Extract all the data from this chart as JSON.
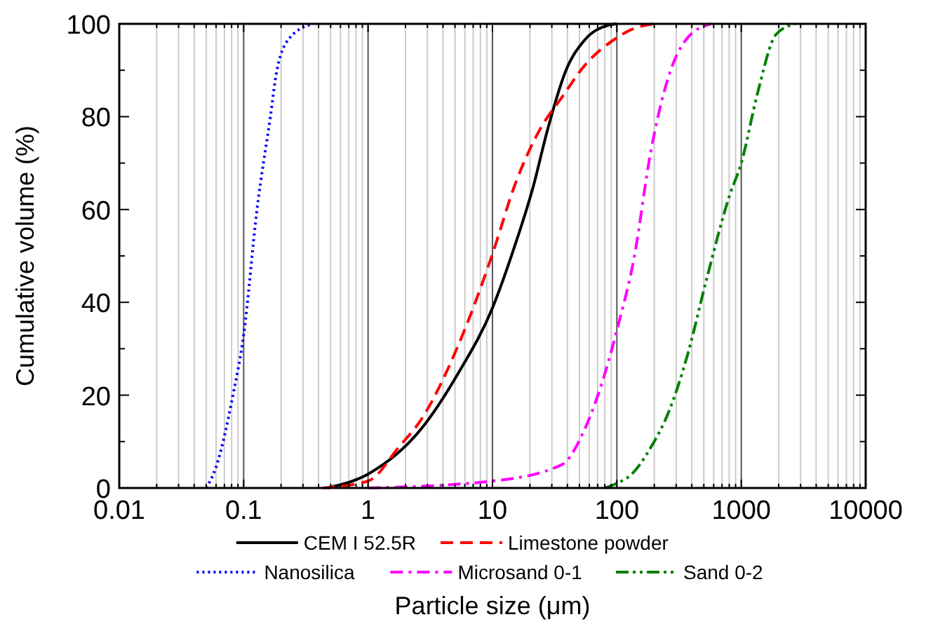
{
  "chart_data": {
    "type": "line",
    "xlabel": "Particle size (μm)",
    "ylabel": "Cumulative volume (%)",
    "log": "x",
    "grid": "x",
    "legend": "bottom",
    "xlim": [
      0.01,
      10000
    ],
    "xticks": [
      0.01,
      0.1,
      1,
      10,
      100,
      1000,
      10000
    ],
    "ylim": [
      0,
      100
    ],
    "yticks": [
      0,
      {
        "value": 10,
        "label": null
      },
      20,
      {
        "value": 30,
        "label": null
      },
      40,
      {
        "value": 50,
        "label": null
      },
      60,
      {
        "value": 70,
        "label": null
      },
      80,
      {
        "value": 90,
        "label": null
      },
      100
    ],
    "series": [
      {
        "name": "CEM I 52.5R",
        "color": "#000000",
        "line_style": "solid",
        "x": [
          0.47,
          1,
          2.65,
          5.3,
          10,
          15,
          21.3,
          27.6,
          39,
          55,
          85,
          100
        ],
        "values": [
          0,
          3,
          12.6,
          24.7,
          38.8,
          51.9,
          65,
          77,
          90,
          96.5,
          99.7,
          100
        ]
      },
      {
        "name": "Limestone powder",
        "color": "#ff0000",
        "line_style": "dashed",
        "x": [
          0.43,
          1,
          1.79,
          2.65,
          5.3,
          10,
          15,
          25,
          35.8,
          55,
          100,
          129,
          200
        ],
        "values": [
          0,
          1.5,
          9,
          14.6,
          30.7,
          50.4,
          65,
          78,
          84,
          91,
          97,
          98.7,
          100
        ]
      },
      {
        "name": "Nanosilica",
        "color": "#0000ff",
        "line_style": "dotted",
        "x": [
          0.05,
          0.06,
          0.082,
          0.1,
          0.128,
          0.164,
          0.185,
          0.235,
          0.36
        ],
        "values": [
          0,
          4.5,
          20,
          33,
          60,
          80,
          90,
          97,
          100
        ]
      },
      {
        "name": "Microsand 0-1",
        "color": "#ff00ff",
        "line_style": "dashdot",
        "x": [
          1,
          10,
          36,
          55,
          85,
          100,
          138,
          186,
          263,
          370,
          571
        ],
        "values": [
          0,
          1.5,
          5,
          12.6,
          27,
          34,
          49.8,
          72,
          89,
          97,
          100
        ]
      },
      {
        "name": "Sand 0-2",
        "color": "#008000",
        "line_style": "dashdotdot",
        "x": [
          80,
          100,
          132,
          186,
          263,
          370,
          524,
          805,
          1000,
          1350,
          1900,
          2700
        ],
        "values": [
          0,
          1,
          3,
          8.6,
          16.6,
          28.7,
          44.8,
          63,
          70,
          85,
          97.7,
          100
        ]
      }
    ]
  }
}
